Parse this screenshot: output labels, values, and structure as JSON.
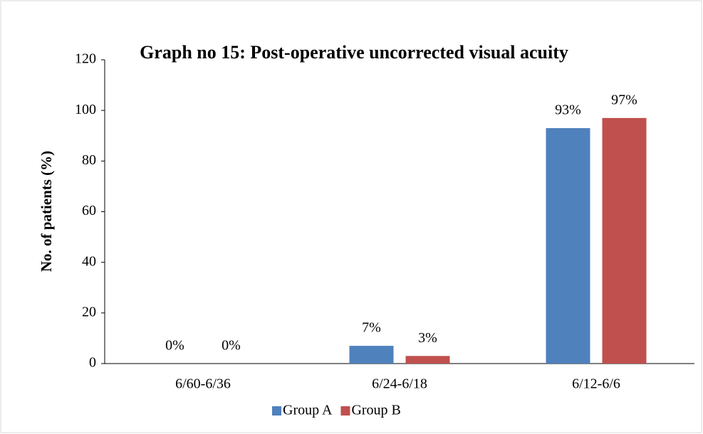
{
  "chart_data": {
    "type": "bar",
    "title": "Graph no 15: Post-operative uncorrected visual acuity",
    "y_label": "No. of patients (%)",
    "categories": [
      "6/60-6/36",
      "6/24-6/18",
      "6/12-6/6"
    ],
    "series": [
      {
        "name": "Group A",
        "color": "#4f81bd",
        "values": [
          0,
          7,
          93
        ],
        "value_labels": [
          "0%",
          "7%",
          "93%"
        ]
      },
      {
        "name": "Group B",
        "color": "#c0504d",
        "values": [
          0,
          3,
          97
        ],
        "value_labels": [
          "0%",
          "3%",
          "97%"
        ]
      }
    ],
    "ylim": [
      0,
      120
    ],
    "yticks": [
      0,
      20,
      40,
      60,
      80,
      100,
      120
    ],
    "grid": false,
    "legend": "bottom"
  }
}
